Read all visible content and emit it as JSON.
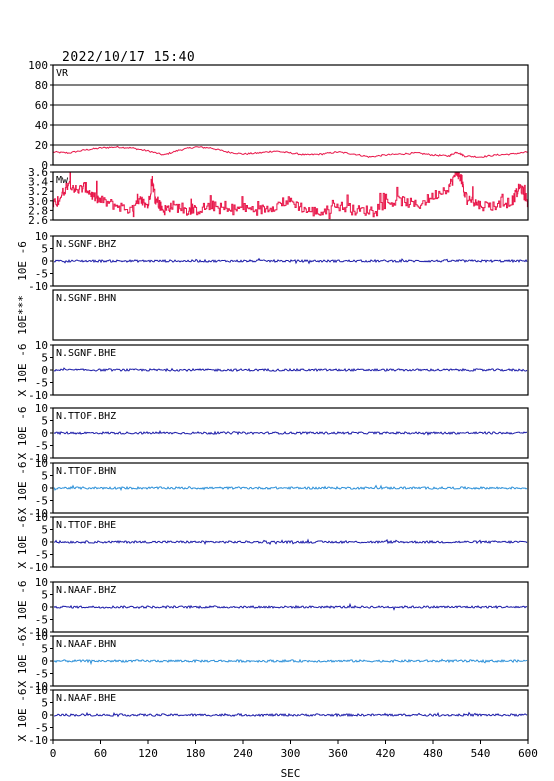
{
  "header": {
    "timestamp": "2022/10/17  15:40"
  },
  "chart_data": {
    "type": "line",
    "xlabel": "SEC",
    "xlim": [
      0,
      600
    ],
    "xticks": [
      0,
      60,
      120,
      180,
      240,
      300,
      360,
      420,
      480,
      540,
      600
    ],
    "panels": [
      {
        "label": "VR",
        "ylim": [
          0,
          100
        ],
        "yticks": [
          "0",
          "20",
          "40",
          "60",
          "80",
          "100"
        ],
        "grid": [
          20,
          40,
          60,
          80
        ],
        "color": "#e8174a",
        "style": "vr"
      },
      {
        "label": "Mw",
        "ylim": [
          2.6,
          3.6
        ],
        "yticks": [
          "2.6",
          "2.8",
          "3.0",
          "3.2",
          "3.4",
          "3.6"
        ],
        "grid": [],
        "color": "#e8174a",
        "style": "mw"
      },
      {
        "label": "N.SGNF.BHZ",
        "ylim": [
          -10,
          10
        ],
        "yticks": [
          "-10",
          "-5",
          "0",
          "5",
          "10"
        ],
        "ylabel": "10E -6",
        "color": "#1a1aa8",
        "style": "wave"
      },
      {
        "label": "N.SGNF.BHN",
        "ylim": [
          -10,
          10
        ],
        "yticks": [],
        "ylabel": "10E***",
        "color": "#1a1aa8",
        "style": "none"
      },
      {
        "label": "N.SGNF.BHE",
        "ylim": [
          -10,
          10
        ],
        "yticks": [
          "-10",
          "-5",
          "0",
          "5",
          "10"
        ],
        "ylabel": "X 10E -6",
        "color": "#1a1aa8",
        "style": "wave"
      },
      {
        "label": "N.TTOF.BHZ",
        "ylim": [
          -10,
          10
        ],
        "yticks": [
          "-10",
          "-5",
          "0",
          "5",
          "10"
        ],
        "ylabel": "X 10E -6",
        "color": "#1a1aa8",
        "style": "wave"
      },
      {
        "label": "N.TTOF.BHN",
        "ylim": [
          -10,
          10
        ],
        "yticks": [
          "-10",
          "-5",
          "0",
          "5",
          "10"
        ],
        "ylabel": "X 10E -6",
        "color": "#2a8fd8",
        "style": "wave"
      },
      {
        "label": "N.TTOF.BHE",
        "ylim": [
          -10,
          10
        ],
        "yticks": [
          "-10",
          "-5",
          "0",
          "5",
          "10"
        ],
        "ylabel": "X 10E -6",
        "color": "#1a1aa8",
        "style": "wave"
      },
      {
        "label": "N.NAAF.BHZ",
        "ylim": [
          -10,
          10
        ],
        "yticks": [
          "-10",
          "-5",
          "0",
          "5",
          "10"
        ],
        "ylabel": "X 10E -6",
        "color": "#1a1aa8",
        "style": "wave"
      },
      {
        "label": "N.NAAF.BHN",
        "ylim": [
          -10,
          10
        ],
        "yticks": [
          "-10",
          "-5",
          "0",
          "5",
          "10"
        ],
        "ylabel": "X 10E -6",
        "color": "#2a8fd8",
        "style": "wave"
      },
      {
        "label": "N.NAAF.BHE",
        "ylim": [
          -10,
          10
        ],
        "yticks": [
          "-10",
          "-5",
          "0",
          "5",
          "10"
        ],
        "ylabel": "X 10E -6",
        "color": "#1a1aa8",
        "style": "wave"
      }
    ],
    "series": [
      {
        "panel": 0,
        "x": [
          0,
          20,
          40,
          60,
          80,
          100,
          120,
          140,
          160,
          180,
          200,
          220,
          240,
          260,
          280,
          300,
          320,
          340,
          360,
          380,
          400,
          420,
          440,
          460,
          480,
          500,
          510,
          520,
          540,
          560,
          580,
          600
        ],
        "y": [
          13,
          12,
          15,
          17,
          18,
          17,
          14,
          10,
          15,
          18,
          17,
          13,
          11,
          12,
          14,
          12,
          10,
          11,
          13,
          11,
          8,
          10,
          11,
          12,
          10,
          9,
          13,
          9,
          8,
          10,
          11,
          13
        ]
      },
      {
        "panel": 1,
        "x": [
          0,
          10,
          20,
          30,
          40,
          50,
          60,
          80,
          100,
          110,
          120,
          125,
          130,
          140,
          150,
          170,
          180,
          200,
          220,
          240,
          260,
          280,
          300,
          320,
          340,
          360,
          380,
          400,
          420,
          440,
          460,
          480,
          500,
          510,
          515,
          520,
          530,
          540,
          560,
          580,
          590,
          600
        ],
        "y": [
          2.9,
          3.1,
          3.4,
          3.2,
          3.3,
          3.1,
          3.0,
          2.9,
          2.8,
          3.0,
          2.9,
          3.4,
          3.0,
          2.8,
          2.9,
          2.8,
          2.8,
          2.9,
          2.8,
          2.85,
          2.8,
          2.9,
          3.0,
          2.8,
          2.75,
          2.9,
          2.8,
          2.8,
          2.95,
          3.0,
          2.9,
          3.1,
          3.3,
          3.6,
          3.5,
          3.1,
          3.0,
          2.9,
          2.9,
          3.0,
          3.3,
          2.95
        ]
      }
    ]
  }
}
